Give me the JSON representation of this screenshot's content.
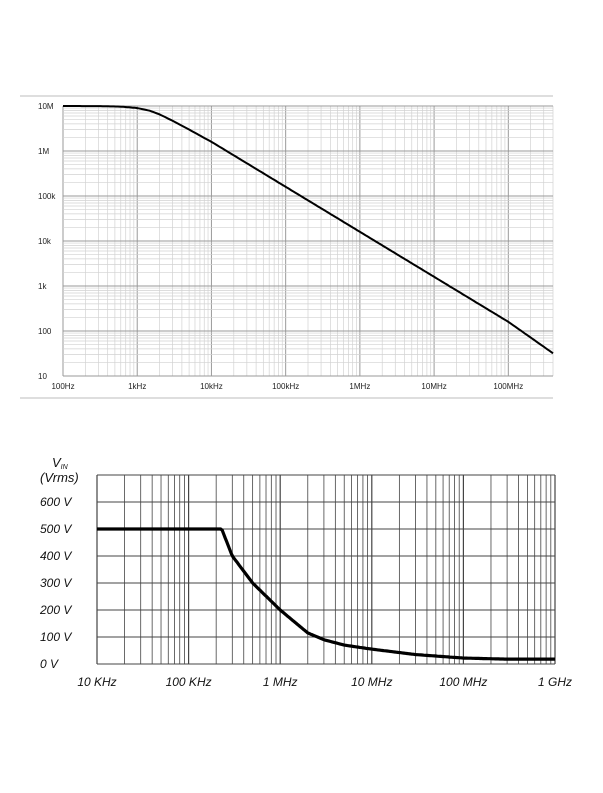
{
  "chart_data": [
    {
      "type": "line",
      "title": "",
      "xlabel": "",
      "ylabel": "",
      "x_scale": "log",
      "y_scale": "log",
      "xlim": [
        100,
        400000000
      ],
      "ylim": [
        10,
        10000000
      ],
      "x_ticks": [
        {
          "value": 100,
          "label": "100Hz"
        },
        {
          "value": 1000,
          "label": "1kHz"
        },
        {
          "value": 10000,
          "label": "10kHz"
        },
        {
          "value": 100000,
          "label": "100kHz"
        },
        {
          "value": 1000000,
          "label": "1MHz"
        },
        {
          "value": 10000000,
          "label": "10MHz"
        },
        {
          "value": 100000000,
          "label": "100MHz"
        }
      ],
      "y_ticks": [
        {
          "value": 10,
          "label": "10"
        },
        {
          "value": 100,
          "label": "100"
        },
        {
          "value": 1000,
          "label": "1k"
        },
        {
          "value": 10000,
          "label": "10k"
        },
        {
          "value": 100000,
          "label": "100k"
        },
        {
          "value": 1000000,
          "label": "1M"
        },
        {
          "value": 10000000,
          "label": "10M"
        }
      ],
      "grid": true,
      "series": [
        {
          "color": "#000000",
          "x": [
            100,
            300,
            600,
            1000,
            1500,
            2000,
            3000,
            5000,
            7000,
            10000,
            20000,
            50000,
            100000,
            1000000,
            10000000,
            100000000,
            400000000
          ],
          "y": [
            10000000,
            9950000,
            9700000,
            9000000,
            7800000,
            6500000,
            4700000,
            3000000,
            2200000,
            1600000,
            800000,
            320000,
            160000,
            16000,
            1600,
            160,
            32
          ]
        }
      ]
    },
    {
      "type": "line",
      "title": "",
      "xlabel": "",
      "ylabel": "VIN (Vrms)",
      "ylabel_main": "V",
      "ylabel_sub": "IN",
      "ylabel_line2": "(Vrms)",
      "x_scale": "log",
      "xlim": [
        10000,
        1000000000
      ],
      "ylim": [
        0,
        700
      ],
      "x_ticks": [
        {
          "value": 10000,
          "label": "10 KHz"
        },
        {
          "value": 100000,
          "label": "100 KHz"
        },
        {
          "value": 1000000,
          "label": "1 MHz"
        },
        {
          "value": 10000000,
          "label": "10 MHz"
        },
        {
          "value": 100000000,
          "label": "100 MHz"
        },
        {
          "value": 1000000000,
          "label": "1 GHz"
        }
      ],
      "y_ticks": [
        {
          "value": 0,
          "label": "0 V"
        },
        {
          "value": 100,
          "label": "100 V"
        },
        {
          "value": 200,
          "label": "200 V"
        },
        {
          "value": 300,
          "label": "300 V"
        },
        {
          "value": 400,
          "label": "400 V"
        },
        {
          "value": 500,
          "label": "500 V"
        },
        {
          "value": 600,
          "label": "600 V"
        }
      ],
      "grid": true,
      "series": [
        {
          "color": "#000000",
          "x": [
            10000,
            100000,
            230000,
            300000,
            500000,
            1000000,
            2000000,
            3000000,
            5000000,
            10000000,
            30000000,
            100000000,
            300000000,
            1000000000
          ],
          "y": [
            500,
            500,
            500,
            400,
            300,
            200,
            115,
            90,
            70,
            55,
            35,
            22,
            18,
            18
          ]
        }
      ]
    }
  ]
}
